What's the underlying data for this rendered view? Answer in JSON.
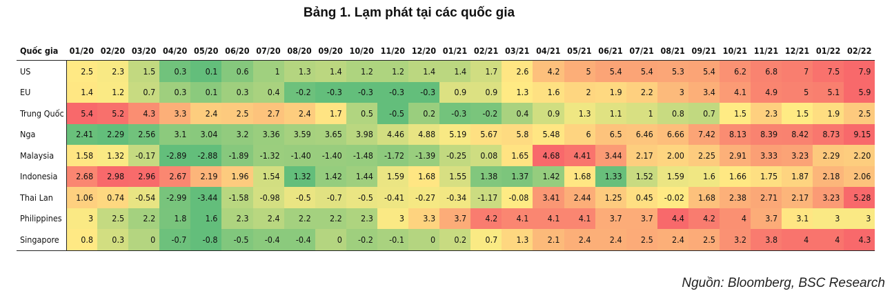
{
  "title": "Bảng 1. Lạm phát tại các quốc gia",
  "source": "Nguồn: Bloomberg, BSC Research",
  "chart_data": {
    "type": "heatmap",
    "corner_label": "Quốc gia",
    "columns": [
      "01/20",
      "02/20",
      "03/20",
      "04/20",
      "05/20",
      "06/20",
      "07/20",
      "08/20",
      "09/20",
      "10/20",
      "11/20",
      "12/20",
      "01/21",
      "02/21",
      "03/21",
      "04/21",
      "05/21",
      "06/21",
      "07/21",
      "08/21",
      "09/21",
      "10/21",
      "11/21",
      "12/21",
      "01/22",
      "02/22"
    ],
    "rows": [
      {
        "label": "US",
        "values": [
          "2.5",
          "2.3",
          "1.5",
          "0.3",
          "0.1",
          "0.6",
          "1",
          "1.3",
          "1.4",
          "1.2",
          "1.2",
          "1.4",
          "1.4",
          "1.7",
          "2.6",
          "4.2",
          "5",
          "5.4",
          "5.4",
          "5.3",
          "5.4",
          "6.2",
          "6.8",
          "7",
          "7.5",
          "7.9"
        ]
      },
      {
        "label": "EU",
        "values": [
          "1.4",
          "1.2",
          "0.7",
          "0.3",
          "0.1",
          "0.3",
          "0.4",
          "-0.2",
          "-0.3",
          "-0.3",
          "-0.3",
          "-0.3",
          "0.9",
          "0.9",
          "1.3",
          "1.6",
          "2",
          "1.9",
          "2.2",
          "3",
          "3.4",
          "4.1",
          "4.9",
          "5",
          "5.1",
          "5.9"
        ]
      },
      {
        "label": "Trung Quốc",
        "values": [
          "5.4",
          "5.2",
          "4.3",
          "3.3",
          "2.4",
          "2.5",
          "2.7",
          "2.4",
          "1.7",
          "0.5",
          "-0.5",
          "0.2",
          "-0.3",
          "-0.2",
          "0.4",
          "0.9",
          "1.3",
          "1.1",
          "1",
          "0.8",
          "0.7",
          "1.5",
          "2.3",
          "1.5",
          "1.9",
          "2.5"
        ]
      },
      {
        "label": "Nga",
        "values": [
          "2.41",
          "2.29",
          "2.56",
          "3.1",
          "3.04",
          "3.2",
          "3.36",
          "3.59",
          "3.65",
          "3.98",
          "4.46",
          "4.88",
          "5.19",
          "5.67",
          "5.8",
          "5.48",
          "6",
          "6.5",
          "6.46",
          "6.66",
          "7.42",
          "8.13",
          "8.39",
          "8.42",
          "8.73",
          "9.15"
        ]
      },
      {
        "label": "Malaysia",
        "values": [
          "1.58",
          "1.32",
          "-0.17",
          "-2.89",
          "-2.88",
          "-1.89",
          "-1.32",
          "-1.40",
          "-1.40",
          "-1.48",
          "-1.72",
          "-1.39",
          "-0.25",
          "0.08",
          "1.65",
          "4.68",
          "4.41",
          "3.44",
          "2.17",
          "2.00",
          "2.25",
          "2.91",
          "3.33",
          "3.23",
          "2.29",
          "2.20"
        ]
      },
      {
        "label": "Indonesia",
        "values": [
          "2.68",
          "2.98",
          "2.96",
          "2.67",
          "2.19",
          "1.96",
          "1.54",
          "1.32",
          "1.42",
          "1.44",
          "1.59",
          "1.68",
          "1.55",
          "1.38",
          "1.37",
          "1.42",
          "1.68",
          "1.33",
          "1.52",
          "1.59",
          "1.6",
          "1.66",
          "1.75",
          "1.87",
          "2.18",
          "2.06"
        ]
      },
      {
        "label": "Thai Lan",
        "values": [
          "1.06",
          "0.74",
          "-0.54",
          "-2.99",
          "-3.44",
          "-1.58",
          "-0.98",
          "-0.5",
          "-0.7",
          "-0.5",
          "-0.41",
          "-0.27",
          "-0.34",
          "-1.17",
          "-0.08",
          "3.41",
          "2.44",
          "1.25",
          "0.45",
          "-0.02",
          "1.68",
          "2.38",
          "2.71",
          "2.17",
          "3.23",
          "5.28"
        ]
      },
      {
        "label": "Philippines",
        "values": [
          "3",
          "2.5",
          "2.2",
          "1.8",
          "1.6",
          "2.3",
          "2.4",
          "2.2",
          "2.2",
          "2.3",
          "3",
          "3.3",
          "3.7",
          "4.2",
          "4.1",
          "4.1",
          "4.1",
          "3.7",
          "3.7",
          "4.4",
          "4.2",
          "4",
          "3.7",
          "3.1",
          "3",
          "3"
        ]
      },
      {
        "label": "Singapore",
        "values": [
          "0.8",
          "0.3",
          "0",
          "-0.7",
          "-0.8",
          "-0.5",
          "-0.4",
          "-0.4",
          "0",
          "-0.2",
          "-0.1",
          "0",
          "0.2",
          "0.7",
          "1.3",
          "2.1",
          "2.4",
          "2.4",
          "2.5",
          "2.4",
          "2.5",
          "3.2",
          "3.8",
          "4",
          "4",
          "4.3"
        ]
      }
    ],
    "color_scale": {
      "low": "#63be7b",
      "mid": "#ffeb84",
      "high": "#f8696b"
    }
  }
}
